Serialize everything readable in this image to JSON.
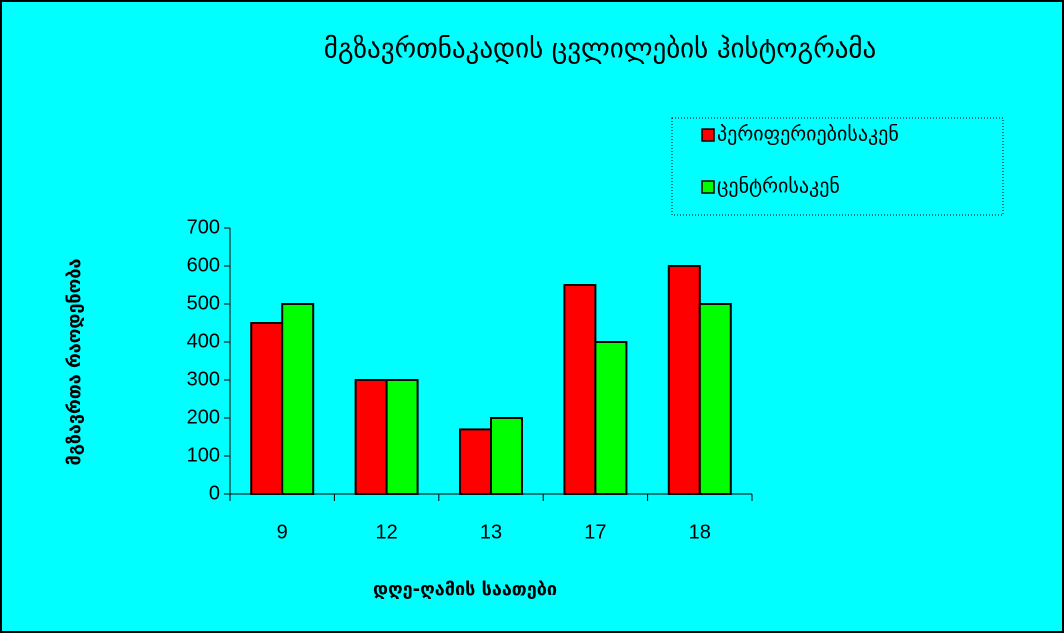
{
  "chart_data": {
    "type": "bar",
    "title": "მგზავრთნაკადის ცვლილების ჰისტოგრამა",
    "x_label": "დღე-ღამის საათები",
    "y_label": "მგზავრთა რაოდენობა",
    "categories": [
      "9",
      "12",
      "13",
      "17",
      "18"
    ],
    "series": [
      {
        "name": "პერიფერიებისაკენ",
        "color": "#ff0000",
        "values": [
          450,
          300,
          170,
          550,
          600
        ]
      },
      {
        "name": "ცენტრისაკენ",
        "color": "#00ff00",
        "values": [
          500,
          300,
          200,
          400,
          500
        ]
      }
    ],
    "ylim": [
      0,
      700
    ],
    "yticks": [
      0,
      100,
      200,
      300,
      400,
      500,
      600,
      700
    ]
  }
}
